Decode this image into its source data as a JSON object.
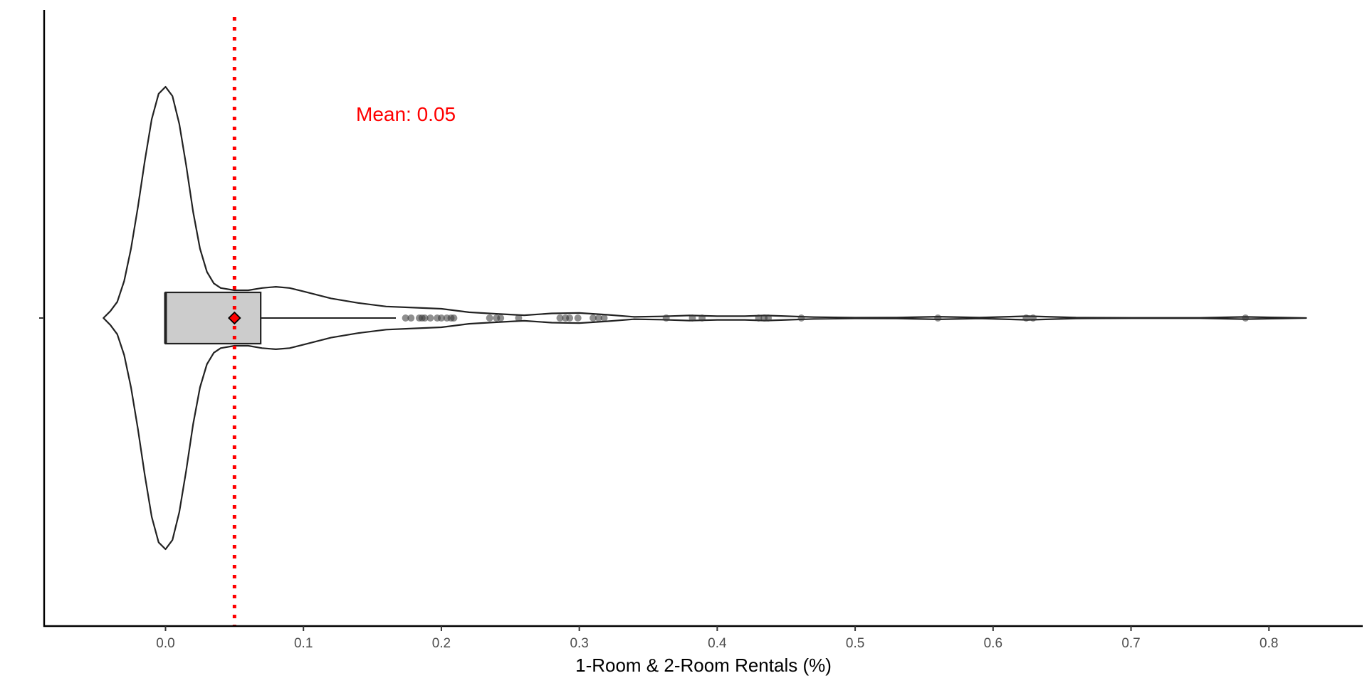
{
  "chart_data": {
    "type": "violin",
    "title": "",
    "xlabel": "1-Room & 2-Room Rentals (%)",
    "ylabel": "",
    "xlim": [
      -0.088,
      0.868
    ],
    "x_ticks": [
      0.0,
      0.1,
      0.2,
      0.3,
      0.4,
      0.5,
      0.6,
      0.7,
      0.8
    ],
    "x_tick_labels": [
      "0.0",
      "0.1",
      "0.2",
      "0.3",
      "0.4",
      "0.5",
      "0.6",
      "0.7",
      "0.8"
    ],
    "grid": false,
    "legend": "none",
    "violin_range": [
      -0.045,
      0.827
    ],
    "violin_density": [
      [
        -0.045,
        0.0
      ],
      [
        -0.04,
        0.03
      ],
      [
        -0.035,
        0.07
      ],
      [
        -0.03,
        0.16
      ],
      [
        -0.025,
        0.3
      ],
      [
        -0.02,
        0.48
      ],
      [
        -0.015,
        0.68
      ],
      [
        -0.01,
        0.86
      ],
      [
        -0.005,
        0.97
      ],
      [
        0.0,
        1.0
      ],
      [
        0.005,
        0.96
      ],
      [
        0.01,
        0.84
      ],
      [
        0.015,
        0.66
      ],
      [
        0.02,
        0.46
      ],
      [
        0.025,
        0.3
      ],
      [
        0.03,
        0.2
      ],
      [
        0.035,
        0.15
      ],
      [
        0.04,
        0.13
      ],
      [
        0.05,
        0.12
      ],
      [
        0.06,
        0.12
      ],
      [
        0.07,
        0.13
      ],
      [
        0.08,
        0.135
      ],
      [
        0.09,
        0.13
      ],
      [
        0.1,
        0.115
      ],
      [
        0.12,
        0.085
      ],
      [
        0.14,
        0.065
      ],
      [
        0.16,
        0.05
      ],
      [
        0.18,
        0.045
      ],
      [
        0.2,
        0.04
      ],
      [
        0.22,
        0.025
      ],
      [
        0.24,
        0.018
      ],
      [
        0.26,
        0.012
      ],
      [
        0.28,
        0.02
      ],
      [
        0.3,
        0.022
      ],
      [
        0.32,
        0.014
      ],
      [
        0.34,
        0.005
      ],
      [
        0.36,
        0.007
      ],
      [
        0.38,
        0.011
      ],
      [
        0.4,
        0.008
      ],
      [
        0.42,
        0.008
      ],
      [
        0.435,
        0.011
      ],
      [
        0.45,
        0.008
      ],
      [
        0.47,
        0.004
      ],
      [
        0.5,
        0.0015
      ],
      [
        0.53,
        0.002
      ],
      [
        0.56,
        0.006
      ],
      [
        0.59,
        0.002
      ],
      [
        0.625,
        0.008
      ],
      [
        0.66,
        0.002
      ],
      [
        0.7,
        0.001
      ],
      [
        0.75,
        0.001
      ],
      [
        0.783,
        0.005
      ],
      [
        0.81,
        0.002
      ],
      [
        0.827,
        0.0
      ]
    ],
    "boxplot": {
      "min": 0.0,
      "q1": 0.0,
      "median": 0.0,
      "q3": 0.069,
      "whisker_high": 0.167
    },
    "mean": 0.05,
    "mean_annotation": "Mean: 0.05",
    "mean_color": "#ff0000",
    "box_fill": "#cccccc",
    "outliers": [
      0.174,
      0.178,
      0.184,
      0.186,
      0.188,
      0.192,
      0.197,
      0.2,
      0.204,
      0.207,
      0.209,
      0.235,
      0.24,
      0.243,
      0.256,
      0.286,
      0.29,
      0.293,
      0.299,
      0.31,
      0.314,
      0.318,
      0.363,
      0.382,
      0.389,
      0.43,
      0.434,
      0.437,
      0.461,
      0.56,
      0.624,
      0.629,
      0.783
    ]
  }
}
